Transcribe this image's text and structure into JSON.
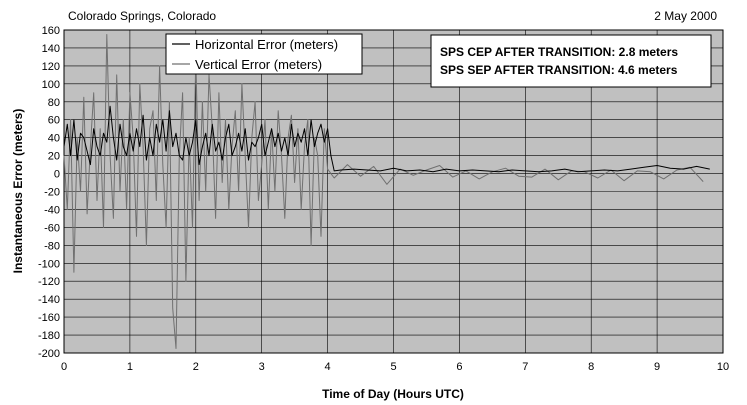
{
  "header": {
    "location": "Colorado Springs, Colorado",
    "date": "2 May 2000"
  },
  "chart_data": {
    "type": "line",
    "title": "",
    "xlabel": "Time of Day (Hours UTC)",
    "ylabel": "Instantaneous Error (meters)",
    "xlim": [
      0,
      10
    ],
    "ylim": [
      -200,
      160
    ],
    "x_ticks": [
      0,
      1,
      2,
      3,
      4,
      5,
      6,
      7,
      8,
      9,
      10
    ],
    "y_ticks": [
      160,
      140,
      120,
      100,
      80,
      60,
      40,
      20,
      0,
      -20,
      -40,
      -60,
      -80,
      -100,
      -120,
      -140,
      -160,
      -180,
      -200
    ],
    "grid": true,
    "legend": "top-center",
    "plot_background": "#c0c0c0",
    "series": [
      {
        "name": "Horizontal Error (meters)",
        "color": "#000000",
        "x": [
          0,
          0.05,
          0.1,
          0.15,
          0.2,
          0.25,
          0.3,
          0.35,
          0.4,
          0.45,
          0.5,
          0.55,
          0.6,
          0.65,
          0.7,
          0.75,
          0.8,
          0.85,
          0.9,
          0.95,
          1.0,
          1.05,
          1.1,
          1.15,
          1.2,
          1.25,
          1.3,
          1.35,
          1.4,
          1.45,
          1.5,
          1.55,
          1.6,
          1.65,
          1.7,
          1.75,
          1.8,
          1.85,
          1.9,
          1.95,
          2.0,
          2.05,
          2.1,
          2.15,
          2.2,
          2.25,
          2.3,
          2.35,
          2.4,
          2.45,
          2.5,
          2.55,
          2.6,
          2.65,
          2.7,
          2.75,
          2.8,
          2.85,
          2.9,
          2.95,
          3.0,
          3.05,
          3.1,
          3.15,
          3.2,
          3.25,
          3.3,
          3.35,
          3.4,
          3.45,
          3.5,
          3.55,
          3.6,
          3.65,
          3.7,
          3.75,
          3.8,
          3.85,
          3.9,
          3.95,
          4.0,
          4.05,
          4.1,
          4.2,
          4.4,
          4.6,
          4.8,
          5.0,
          5.2,
          5.4,
          5.6,
          5.8,
          6.0,
          6.2,
          6.4,
          6.6,
          6.8,
          7.0,
          7.2,
          7.4,
          7.6,
          7.8,
          8.0,
          8.2,
          8.4,
          8.6,
          8.8,
          9.0,
          9.2,
          9.4,
          9.6,
          9.8
        ],
        "y": [
          30,
          55,
          20,
          60,
          15,
          45,
          40,
          25,
          10,
          50,
          30,
          20,
          45,
          35,
          75,
          40,
          15,
          55,
          30,
          20,
          45,
          25,
          50,
          30,
          65,
          15,
          40,
          20,
          55,
          35,
          60,
          25,
          70,
          30,
          45,
          20,
          15,
          40,
          20,
          35,
          60,
          10,
          30,
          45,
          20,
          55,
          25,
          35,
          15,
          40,
          55,
          20,
          30,
          45,
          25,
          50,
          15,
          35,
          30,
          40,
          55,
          20,
          35,
          50,
          30,
          45,
          25,
          40,
          20,
          55,
          30,
          45,
          35,
          50,
          20,
          60,
          30,
          45,
          55,
          35,
          50,
          20,
          3,
          4,
          5,
          4,
          3,
          6,
          3,
          4,
          2,
          5,
          3,
          4,
          3,
          2,
          4,
          3,
          2,
          3,
          5,
          2,
          3,
          4,
          3,
          5,
          7,
          9,
          6,
          5,
          8,
          5
        ]
      },
      {
        "name": "Vertical Error (meters)",
        "color": "#707070",
        "x": [
          0,
          0.05,
          0.1,
          0.15,
          0.2,
          0.25,
          0.3,
          0.35,
          0.4,
          0.45,
          0.5,
          0.55,
          0.6,
          0.65,
          0.7,
          0.75,
          0.8,
          0.85,
          0.9,
          0.95,
          1.0,
          1.05,
          1.1,
          1.15,
          1.2,
          1.25,
          1.3,
          1.35,
          1.4,
          1.45,
          1.5,
          1.55,
          1.6,
          1.65,
          1.7,
          1.75,
          1.8,
          1.85,
          1.9,
          1.95,
          2.0,
          2.05,
          2.1,
          2.15,
          2.2,
          2.25,
          2.3,
          2.35,
          2.4,
          2.45,
          2.5,
          2.55,
          2.6,
          2.65,
          2.7,
          2.75,
          2.8,
          2.85,
          2.9,
          2.95,
          3.0,
          3.05,
          3.1,
          3.15,
          3.2,
          3.25,
          3.3,
          3.35,
          3.4,
          3.45,
          3.5,
          3.55,
          3.6,
          3.65,
          3.7,
          3.75,
          3.8,
          3.85,
          3.9,
          3.95,
          4.0,
          4.1,
          4.3,
          4.5,
          4.7,
          4.9,
          5.1,
          5.3,
          5.5,
          5.7,
          5.9,
          6.1,
          6.3,
          6.5,
          6.7,
          6.9,
          7.1,
          7.3,
          7.5,
          7.7,
          7.9,
          8.1,
          8.3,
          8.5,
          8.7,
          8.9,
          9.1,
          9.3,
          9.5,
          9.7
        ],
        "y": [
          20,
          -40,
          60,
          -110,
          40,
          -20,
          85,
          -45,
          30,
          90,
          -30,
          50,
          -60,
          155,
          20,
          -50,
          110,
          -20,
          60,
          -40,
          90,
          40,
          -70,
          100,
          30,
          -80,
          50,
          70,
          -30,
          120,
          10,
          -60,
          80,
          -150,
          -195,
          20,
          90,
          -120,
          40,
          -60,
          130,
          -30,
          80,
          -20,
          110,
          50,
          -50,
          90,
          -10,
          60,
          -40,
          30,
          70,
          -20,
          100,
          20,
          -60,
          40,
          80,
          -30,
          10,
          60,
          -40,
          50,
          -20,
          70,
          20,
          -50,
          40,
          65,
          -10,
          50,
          -40,
          30,
          60,
          -80,
          40,
          20,
          -70,
          50,
          5,
          -5,
          10,
          -3,
          8,
          -12,
          5,
          -2,
          4,
          9,
          -4,
          3,
          -6,
          2,
          6,
          -3,
          -4,
          5,
          -7,
          3,
          2,
          -5,
          4,
          -8,
          3,
          2,
          -6,
          4,
          7,
          -9
        ]
      }
    ],
    "annotations": [
      "SPS CEP AFTER TRANSITION:  2.8 meters",
      "SPS SEP AFTER TRANSITION:  4.6 meters"
    ]
  }
}
